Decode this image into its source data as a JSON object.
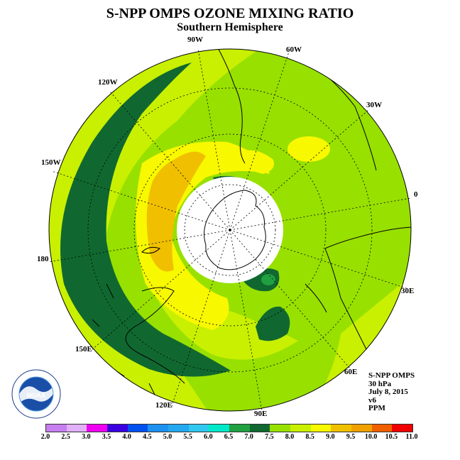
{
  "title": "S-NPP OMPS OZONE MIXING RATIO",
  "subtitle": "Southern Hemisphere",
  "longitude_labels": [
    {
      "key": "lon_90w",
      "text": "90W"
    },
    {
      "key": "lon_60w",
      "text": "60W"
    },
    {
      "key": "lon_120w",
      "text": "120W"
    },
    {
      "key": "lon_30w",
      "text": "30W"
    },
    {
      "key": "lon_150w",
      "text": "150W"
    },
    {
      "key": "lon_0",
      "text": "0"
    },
    {
      "key": "lon_180",
      "text": "180"
    },
    {
      "key": "lon_30e",
      "text": "30E"
    },
    {
      "key": "lon_150e",
      "text": "150E"
    },
    {
      "key": "lon_60e",
      "text": "60E"
    },
    {
      "key": "lon_120e",
      "text": "120E"
    },
    {
      "key": "lon_90e",
      "text": "90E"
    }
  ],
  "info": {
    "instrument": "S-NPP OMPS",
    "level": "30 hPa",
    "date": "July 8, 2015",
    "version": "v6",
    "units": "PPM"
  },
  "logo_icon": "noaa-logo-icon",
  "colorbar": {
    "ticks": [
      "2.0",
      "2.5",
      "3.0",
      "3.5",
      "4.0",
      "4.5",
      "5.0",
      "5.5",
      "6.0",
      "6.5",
      "7.0",
      "7.5",
      "8.0",
      "8.5",
      "9.0",
      "9.5",
      "10.0",
      "10.5",
      "11.0"
    ],
    "colors": [
      "#c77ef0",
      "#e0b0f8",
      "#f000f0",
      "#3a00e0",
      "#0050f0",
      "#1e90f0",
      "#24a8f0",
      "#30c8f0",
      "#00e8c8",
      "#20a040",
      "#106830",
      "#98e000",
      "#c8f000",
      "#f8f800",
      "#f0c000",
      "#f0a000",
      "#f06000",
      "#f00000",
      "#906040"
    ]
  }
}
